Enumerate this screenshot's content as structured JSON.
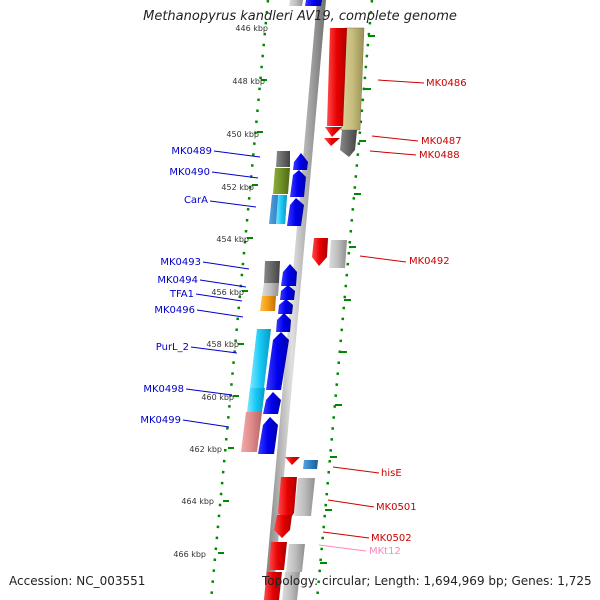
{
  "title": "Methanopyrus kandleri AV19, complete genome",
  "footer": {
    "accession": "Accession: NC_003551",
    "topology": "Topology: circular; Length: 1,694,969 bp; Genes: 1,725"
  },
  "scale_labels": [
    "446 kbp",
    "448 kbp",
    "450 kbp",
    "452 kbp",
    "454 kbp",
    "456 kbp",
    "458 kbp",
    "460 kbp",
    "462 kbp",
    "464 kbp",
    "466 kbp"
  ],
  "colors": {
    "forward_label": "#0000cc",
    "reverse_label": "#cc0000",
    "rna_label": "#ff88bb",
    "forward_gene": "#0000ee",
    "reverse_gene": "#ee0000",
    "backbone": "#a0a0a0",
    "scale_dots": "#008800"
  },
  "forward_genes": [
    "MK0489",
    "MK0490",
    "CarA",
    "MK0493",
    "MK0494",
    "TFA1",
    "MK0496",
    "PurL_2",
    "MK0498",
    "MK0499"
  ],
  "reverse_genes": [
    "MK0486",
    "MK0487",
    "MK0488",
    "MK0492",
    "hisE",
    "MK0501",
    "MK0502",
    "MKt12"
  ]
}
